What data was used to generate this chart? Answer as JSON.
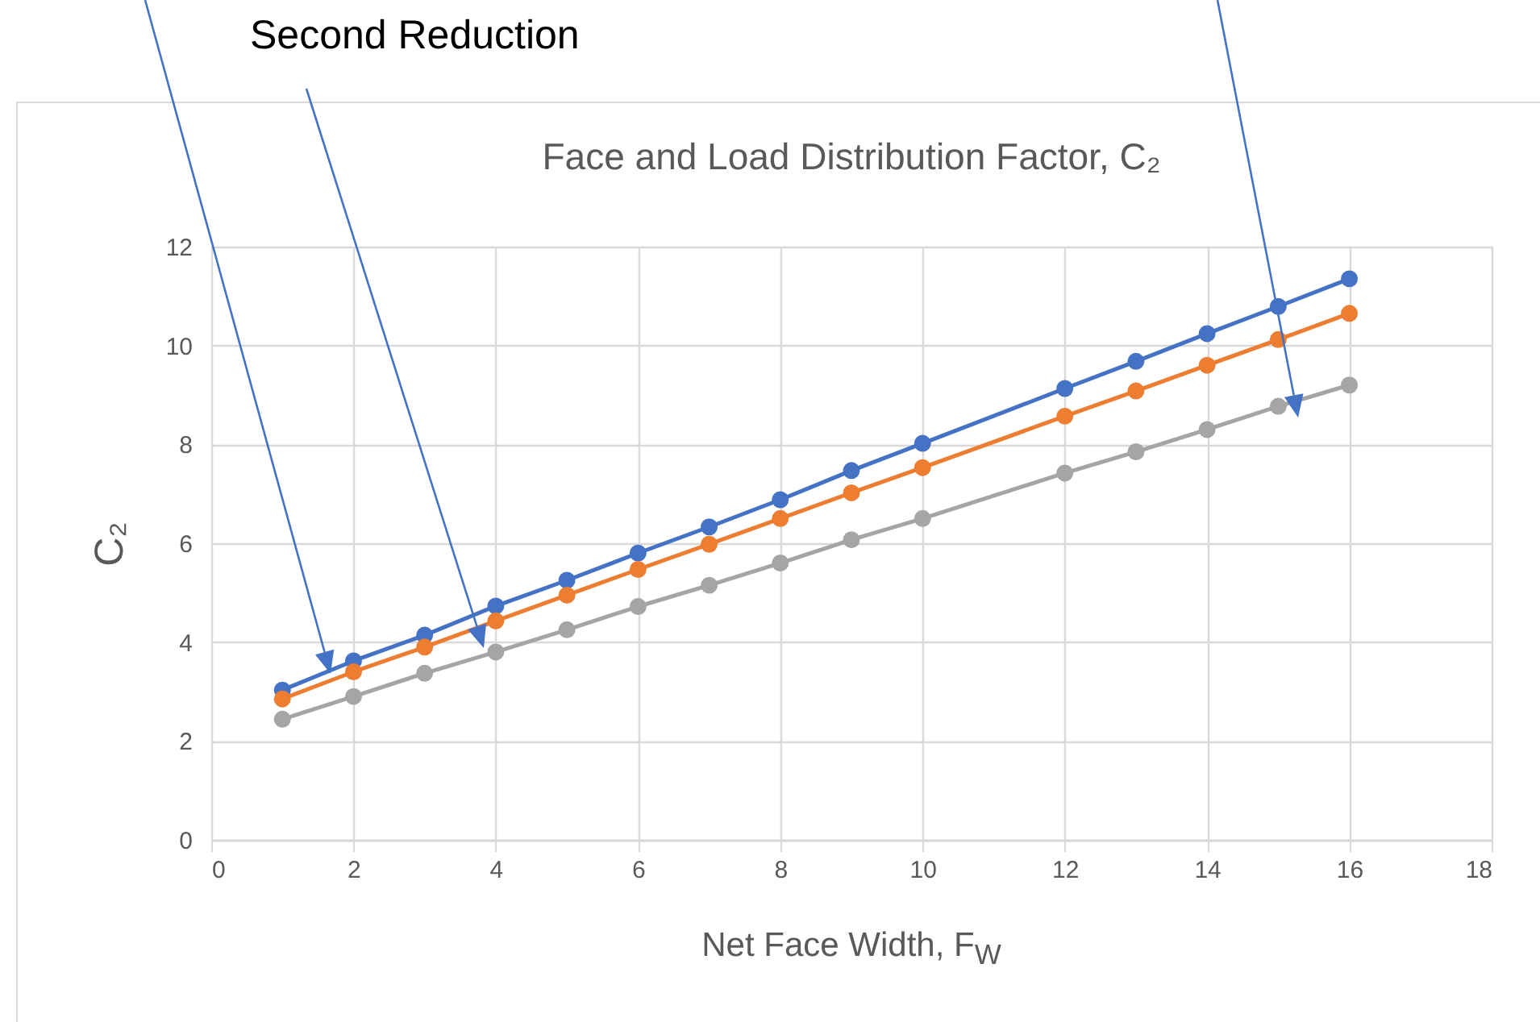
{
  "chart_data": {
    "type": "line",
    "title": "Face and Load Distribution Factor, C₂",
    "xlabel": "Net Face Width, F$_{W}$",
    "ylabel": "C₂",
    "annotations": [
      "Second Reduction"
    ],
    "x": [
      1,
      2,
      3,
      4,
      5,
      6,
      7,
      8,
      9,
      10,
      12,
      13,
      14,
      15,
      16
    ],
    "series": [
      {
        "color": "#4472c4",
        "values": [
          3.03,
          3.62,
          4.14,
          4.73,
          5.25,
          5.8,
          6.33,
          6.88,
          7.47,
          8.02,
          9.13,
          9.68,
          10.24,
          10.79,
          11.35
        ]
      },
      {
        "color": "#ed7d31",
        "values": [
          2.85,
          3.4,
          3.9,
          4.43,
          4.95,
          5.47,
          5.98,
          6.5,
          7.02,
          7.53,
          8.57,
          9.08,
          9.6,
          10.12,
          10.65
        ]
      },
      {
        "color": "#a5a5a5",
        "values": [
          2.44,
          2.9,
          3.37,
          3.8,
          4.25,
          4.72,
          5.15,
          5.6,
          6.07,
          6.5,
          7.42,
          7.85,
          8.3,
          8.77,
          9.2
        ]
      }
    ],
    "xlim": [
      0,
      18
    ],
    "xticks": [
      0,
      2,
      4,
      6,
      8,
      10,
      12,
      14,
      16,
      18
    ],
    "ylim": [
      0,
      12
    ],
    "yticks": [
      0,
      2,
      4,
      6,
      8,
      10,
      12
    ],
    "grid": true,
    "marker": "circle",
    "line_style": "solid"
  }
}
